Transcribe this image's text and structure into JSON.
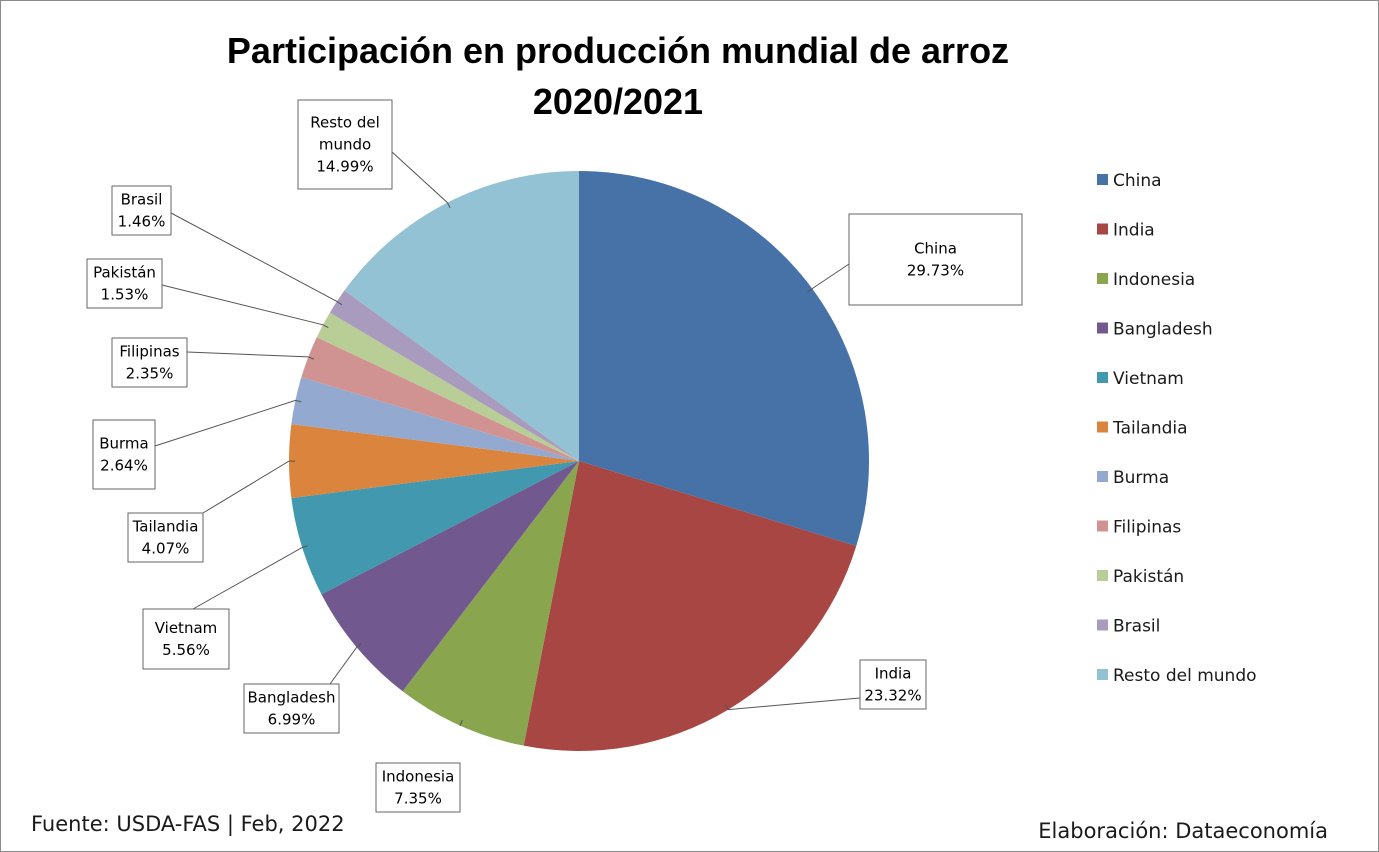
{
  "chart_data": {
    "type": "pie",
    "title": [
      "Participación en producción mundial de arroz",
      "2020/2021"
    ],
    "slices": [
      {
        "name": "China",
        "value": 29.73,
        "label": "29.73%",
        "color": "#4672A8"
      },
      {
        "name": "India",
        "value": 23.32,
        "label": "23.32%",
        "color": "#A84644"
      },
      {
        "name": "Indonesia",
        "value": 7.35,
        "label": "7.35%",
        "color": "#89A64E"
      },
      {
        "name": "Bangladesh",
        "value": 6.99,
        "label": "6.99%",
        "color": "#71588F"
      },
      {
        "name": "Vietnam",
        "value": 5.56,
        "label": "5.56%",
        "color": "#4198AF"
      },
      {
        "name": "Tailandia",
        "value": 4.07,
        "label": "4.07%",
        "color": "#DB843D"
      },
      {
        "name": "Burma",
        "value": 2.64,
        "label": "2.64%",
        "color": "#93A9CF"
      },
      {
        "name": "Filipinas",
        "value": 2.35,
        "label": "2.35%",
        "color": "#D19392"
      },
      {
        "name": "Pakistán",
        "value": 1.53,
        "label": "1.53%",
        "color": "#B9CD96"
      },
      {
        "name": "Brasil",
        "value": 1.46,
        "label": "1.46%",
        "color": "#A99BBD"
      },
      {
        "name": "Resto del mundo",
        "value": 14.99,
        "label": "14.99%",
        "label_lines": [
          "Resto del",
          "mundo"
        ],
        "color": "#92C2D4"
      }
    ],
    "legend_position": "right"
  },
  "footer": {
    "source": "Fuente: USDA-FAS | Feb, 2022",
    "credit": "Elaboración: Dataeconomía"
  }
}
